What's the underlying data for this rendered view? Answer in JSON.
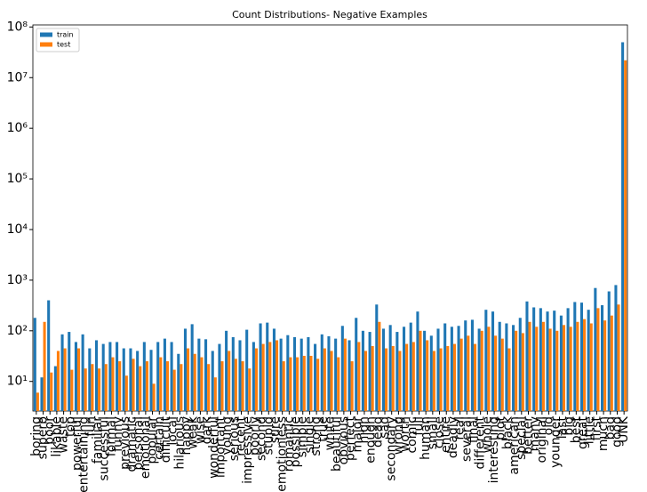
{
  "chart_data": {
    "type": "bar",
    "title": "Count Distributions- Negative Examples",
    "categories": [
      "boring",
      "superb",
      "poor",
      "likable",
      "waste",
      "top",
      "powerful",
      "entertaining",
      "fun",
      "familiar",
      "successful",
      "formal",
      "funny",
      "previous",
      "dramatic",
      "personal",
      "emotional",
      "popular",
      "certain",
      "difficult",
      "local",
      "hilarious",
      "happy",
      "weak",
      "wise",
      "dark",
      "wonderful",
      "important",
      "young",
      "serious",
      "recent",
      "impressive",
      "poorly",
      "second",
      "stupid",
      "sure",
      "emotionless",
      "romantic",
      "possible",
      "simple",
      "single",
      "strong",
      "true",
      "white",
      "beautiful",
      "obvious",
      "perfect",
      "major",
      "high",
      "enough",
      "dead",
      "sad",
      "secondary",
      "wrong",
      "worth",
      "comic",
      "full",
      "human",
      "small",
      "close",
      "entire",
      "deadly",
      "real",
      "several",
      "final",
      "different",
      "whole",
      "interesting",
      "plot",
      "black",
      "american",
      "special",
      "better",
      "many",
      "original",
      "old",
      "younger",
      "last",
      "big",
      "best",
      "great",
      "little",
      "first",
      "much",
      "bad",
      "good",
      "UNK"
    ],
    "series": [
      {
        "name": "train",
        "color": "#1f77b4",
        "values": [
          180,
          12,
          400,
          20,
          85,
          95,
          60,
          85,
          45,
          65,
          55,
          60,
          60,
          45,
          45,
          40,
          60,
          42,
          60,
          70,
          60,
          35,
          110,
          135,
          70,
          68,
          40,
          55,
          100,
          75,
          65,
          105,
          60,
          140,
          145,
          110,
          70,
          82,
          75,
          70,
          75,
          55,
          85,
          78,
          70,
          125,
          65,
          180,
          100,
          95,
          330,
          110,
          130,
          95,
          120,
          145,
          240,
          100,
          80,
          110,
          140,
          120,
          125,
          160,
          165,
          110,
          260,
          240,
          150,
          140,
          130,
          180,
          380,
          290,
          280,
          240,
          250,
          200,
          280,
          370,
          360,
          260,
          700,
          320,
          600,
          800,
          50000000
        ]
      },
      {
        "name": "test",
        "color": "#ff7f0e",
        "values": [
          6,
          150,
          15,
          40,
          45,
          17,
          45,
          18,
          22,
          18,
          22,
          30,
          25,
          13,
          28,
          20,
          25,
          9,
          30,
          25,
          17,
          22,
          45,
          35,
          30,
          22,
          12,
          25,
          40,
          28,
          25,
          18,
          45,
          55,
          60,
          65,
          25,
          30,
          30,
          32,
          32,
          28,
          45,
          40,
          30,
          70,
          25,
          60,
          40,
          50,
          150,
          45,
          50,
          40,
          55,
          60,
          100,
          65,
          40,
          45,
          50,
          55,
          70,
          80,
          55,
          100,
          120,
          80,
          70,
          45,
          100,
          90,
          150,
          120,
          150,
          110,
          100,
          130,
          120,
          150,
          170,
          140,
          280,
          160,
          200,
          330,
          22000000
        ]
      }
    ],
    "ylog": true,
    "ylim": [
      2.6,
      110000000
    ],
    "yticks": [
      {
        "value": 10,
        "label": "10¹"
      },
      {
        "value": 100,
        "label": "10²"
      },
      {
        "value": 1000,
        "label": "10³"
      },
      {
        "value": 10000,
        "label": "10⁴"
      },
      {
        "value": 100000,
        "label": "10⁵"
      },
      {
        "value": 1000000,
        "label": "10⁶"
      },
      {
        "value": 10000000,
        "label": "10⁷"
      },
      {
        "value": 100000000,
        "label": "10⁸"
      }
    ],
    "legend": "upper left"
  }
}
